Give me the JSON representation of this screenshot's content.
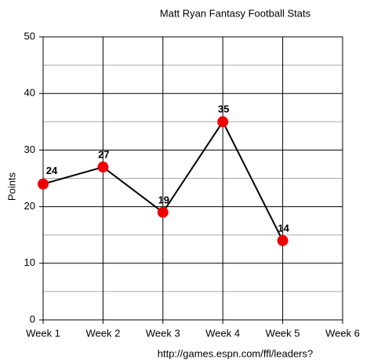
{
  "chart_data": {
    "type": "line",
    "title": "Matt Ryan Fantasy Football Stats",
    "ylabel": "Points",
    "source": "http://games.espn.com/ffl/leaders?",
    "categories": [
      "Week 1",
      "Week 2",
      "Week 3",
      "Week 4",
      "Week 5",
      "Week 6"
    ],
    "series": [
      {
        "name": "Points",
        "color": "#ee0000",
        "line_color": "#000000",
        "values": [
          24,
          27,
          19,
          35,
          14,
          null
        ]
      }
    ],
    "ylim": [
      0,
      50
    ],
    "yticks": [
      0,
      10,
      20,
      30,
      40,
      50
    ],
    "minor_yticks": [
      5,
      15,
      25,
      35,
      45
    ],
    "grid": true
  }
}
